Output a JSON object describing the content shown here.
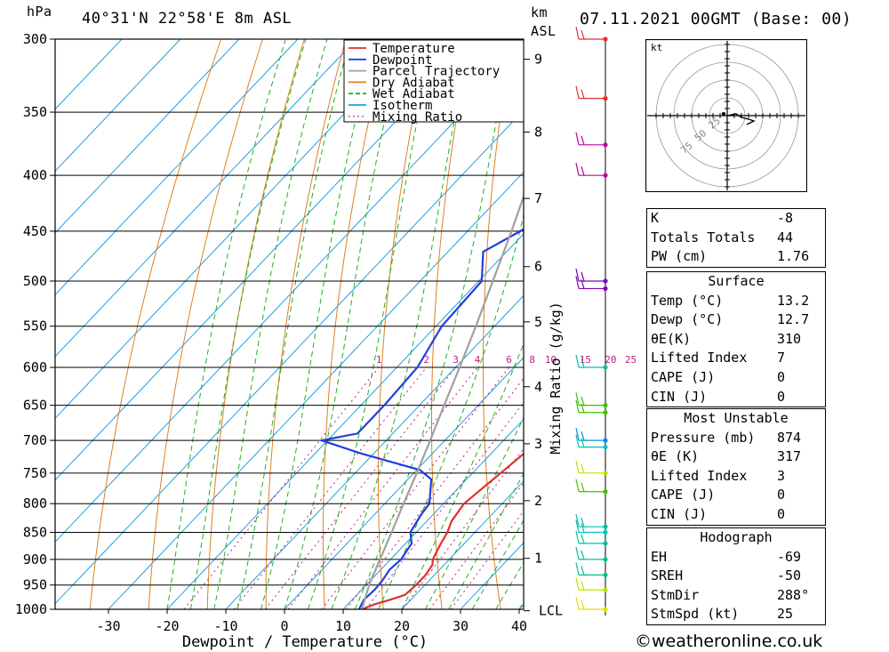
{
  "header": {
    "hpa_label": "hPa",
    "location": "40°31'N  22°58'E  8m  ASL",
    "km_label": "km",
    "asl_label": "ASL",
    "datetime": "07.11.2021  00GMT  (Base: 00)"
  },
  "chart_data": {
    "type": "line",
    "xlabel": "Dewpoint / Temperature (°C)",
    "x_ticks": [
      -30,
      -20,
      -10,
      0,
      10,
      20,
      30,
      40
    ],
    "xlim": [
      -40,
      40
    ],
    "ylim": [
      300,
      1000
    ],
    "y_scale": "log-pressure",
    "pressure_ticks": [
      300,
      350,
      400,
      450,
      500,
      550,
      600,
      650,
      700,
      750,
      800,
      850,
      900,
      950,
      1000
    ],
    "km_ticks": [
      {
        "label": "9",
        "p": 313
      },
      {
        "label": "8",
        "p": 365
      },
      {
        "label": "7",
        "p": 420
      },
      {
        "label": "6",
        "p": 485
      },
      {
        "label": "5",
        "p": 545
      },
      {
        "label": "4",
        "p": 625
      },
      {
        "label": "3",
        "p": 705
      },
      {
        "label": "2",
        "p": 795
      },
      {
        "label": "1",
        "p": 898
      },
      {
        "label": "LCL",
        "p": 1003
      }
    ],
    "right_axis_label": "Mixing Ratio (g/kg)",
    "mixing_ratio_labels": [
      "1",
      "2",
      "3",
      "4",
      "6",
      "8",
      "10",
      "15",
      "20",
      "25"
    ],
    "mixing_ratio_values": [
      1,
      2,
      3,
      4,
      6,
      8,
      10,
      15,
      20,
      25
    ],
    "legend": [
      {
        "name": "Temperature",
        "color": "#e03030",
        "dash": false
      },
      {
        "name": "Dewpoint",
        "color": "#2040e0",
        "dash": false
      },
      {
        "name": "Parcel Trajectory",
        "color": "#a0a0a0",
        "dash": false
      },
      {
        "name": "Dry Adiabat",
        "color": "#e08020",
        "dash": false
      },
      {
        "name": "Wet Adiabat",
        "color": "#20b020",
        "dash": true
      },
      {
        "name": "Isotherm",
        "color": "#20a0e0",
        "dash": false
      },
      {
        "name": "Mixing Ratio",
        "color": "#c02080",
        "dash": true
      }
    ],
    "series": [
      {
        "name": "Temperature",
        "color": "#e03030",
        "points": [
          [
            1000,
            13.2
          ],
          [
            990,
            14.5
          ],
          [
            980,
            16.5
          ],
          [
            970,
            18.2
          ],
          [
            950,
            18.5
          ],
          [
            930,
            18.5
          ],
          [
            910,
            18.0
          ],
          [
            900,
            17.2
          ],
          [
            870,
            16.0
          ],
          [
            850,
            15.3
          ],
          [
            830,
            14.2
          ],
          [
            800,
            13.5
          ],
          [
            780,
            14.0
          ],
          [
            750,
            14.8
          ],
          [
            720,
            15.6
          ],
          [
            700,
            15.3
          ],
          [
            680,
            13.8
          ],
          [
            650,
            12.0
          ],
          [
            600,
            8.5
          ],
          [
            575,
            6.5
          ],
          [
            550,
            5.2
          ],
          [
            530,
            5.0
          ],
          [
            500,
            0.5
          ],
          [
            450,
            -5.0
          ],
          [
            400,
            -11.0
          ],
          [
            380,
            -14.0
          ],
          [
            350,
            -16.5
          ],
          [
            320,
            -19.0
          ],
          [
            300,
            -21.5
          ]
        ]
      },
      {
        "name": "Dewpoint",
        "color": "#2040e0",
        "points": [
          [
            1000,
            12.7
          ],
          [
            980,
            12.0
          ],
          [
            960,
            12.2
          ],
          [
            940,
            12.0
          ],
          [
            920,
            11.5
          ],
          [
            900,
            11.8
          ],
          [
            870,
            11.0
          ],
          [
            850,
            9.0
          ],
          [
            820,
            8.0
          ],
          [
            800,
            7.6
          ],
          [
            760,
            4.0
          ],
          [
            745,
            0.5
          ],
          [
            720,
            -12.0
          ],
          [
            700,
            -21.0
          ],
          [
            690,
            -16.0
          ],
          [
            650,
            -16.0
          ],
          [
            600,
            -16.5
          ],
          [
            550,
            -19.0
          ],
          [
            500,
            -19.5
          ],
          [
            470,
            -24.0
          ],
          [
            450,
            -21.0
          ],
          [
            400,
            -15.0
          ],
          [
            385,
            -15.0
          ],
          [
            380,
            -16.0
          ],
          [
            370,
            -15.0
          ],
          [
            365,
            -3.5
          ],
          [
            355,
            -4.5
          ],
          [
            345,
            -4.5
          ],
          [
            340,
            -5.0
          ],
          [
            320,
            -6.0
          ],
          [
            310,
            -9.0
          ],
          [
            300,
            -12.5
          ]
        ]
      },
      {
        "name": "Parcel Trajectory",
        "color": "#a0a0a0",
        "points": [
          [
            1000,
            13.2
          ],
          [
            950,
            10.5
          ],
          [
            900,
            8.2
          ],
          [
            850,
            5.8
          ],
          [
            800,
            3.2
          ],
          [
            750,
            0.5
          ],
          [
            700,
            -2.5
          ],
          [
            650,
            -5.8
          ],
          [
            600,
            -9.3
          ],
          [
            550,
            -13.2
          ],
          [
            500,
            -17.6
          ],
          [
            450,
            -22.5
          ],
          [
            400,
            -28.2
          ],
          [
            350,
            -34.8
          ],
          [
            300,
            -42.5
          ]
        ]
      }
    ],
    "wind_barbs": [
      {
        "p": 300,
        "color": "#e03030"
      },
      {
        "p": 340,
        "color": "#e03030"
      },
      {
        "p": 375,
        "color": "#c000a0"
      },
      {
        "p": 400,
        "color": "#c000a0"
      },
      {
        "p": 500,
        "color": "#8000c0"
      },
      {
        "p": 508,
        "color": "#8000c0"
      },
      {
        "p": 600,
        "color": "#00c0a0"
      },
      {
        "p": 650,
        "color": "#40c000"
      },
      {
        "p": 660,
        "color": "#40c000"
      },
      {
        "p": 700,
        "color": "#0090e0"
      },
      {
        "p": 710,
        "color": "#00c0c0"
      },
      {
        "p": 750,
        "color": "#c0e000"
      },
      {
        "p": 780,
        "color": "#40c000"
      },
      {
        "p": 840,
        "color": "#00c0a0"
      },
      {
        "p": 850,
        "color": "#00c0c0"
      },
      {
        "p": 870,
        "color": "#00c0a0"
      },
      {
        "p": 900,
        "color": "#00c090"
      },
      {
        "p": 930,
        "color": "#00c090"
      },
      {
        "p": 960,
        "color": "#c0e000"
      },
      {
        "p": 1000,
        "color": "#e0e000"
      }
    ]
  },
  "hodograph": {
    "unit_label": "kt",
    "ring_labels": [
      "25",
      "50",
      "75"
    ]
  },
  "indices": [
    {
      "label": "K",
      "value": "-8"
    },
    {
      "label": "Totals Totals",
      "value": "44"
    },
    {
      "label": "PW (cm)",
      "value": "1.76"
    }
  ],
  "surface": {
    "title": "Surface",
    "rows": [
      {
        "label": "Temp (°C)",
        "value": "13.2"
      },
      {
        "label": "Dewp (°C)",
        "value": "12.7"
      },
      {
        "label": "θE(K)",
        "value": "310"
      },
      {
        "label": "Lifted Index",
        "value": "7"
      },
      {
        "label": "CAPE (J)",
        "value": "0"
      },
      {
        "label": "CIN (J)",
        "value": "0"
      }
    ]
  },
  "most_unstable": {
    "title": "Most Unstable",
    "rows": [
      {
        "label": "Pressure (mb)",
        "value": "874"
      },
      {
        "label": "θE (K)",
        "value": "317"
      },
      {
        "label": "Lifted Index",
        "value": "3"
      },
      {
        "label": "CAPE (J)",
        "value": "0"
      },
      {
        "label": "CIN (J)",
        "value": "0"
      }
    ]
  },
  "hodograph_table": {
    "title": "Hodograph",
    "rows": [
      {
        "label": "EH",
        "value": "-69"
      },
      {
        "label": "SREH",
        "value": "-50"
      },
      {
        "label": "StmDir",
        "value": "288°"
      },
      {
        "label": "StmSpd (kt)",
        "value": "25"
      }
    ]
  },
  "footer": {
    "copyright": "©weatheronline.co.uk"
  }
}
